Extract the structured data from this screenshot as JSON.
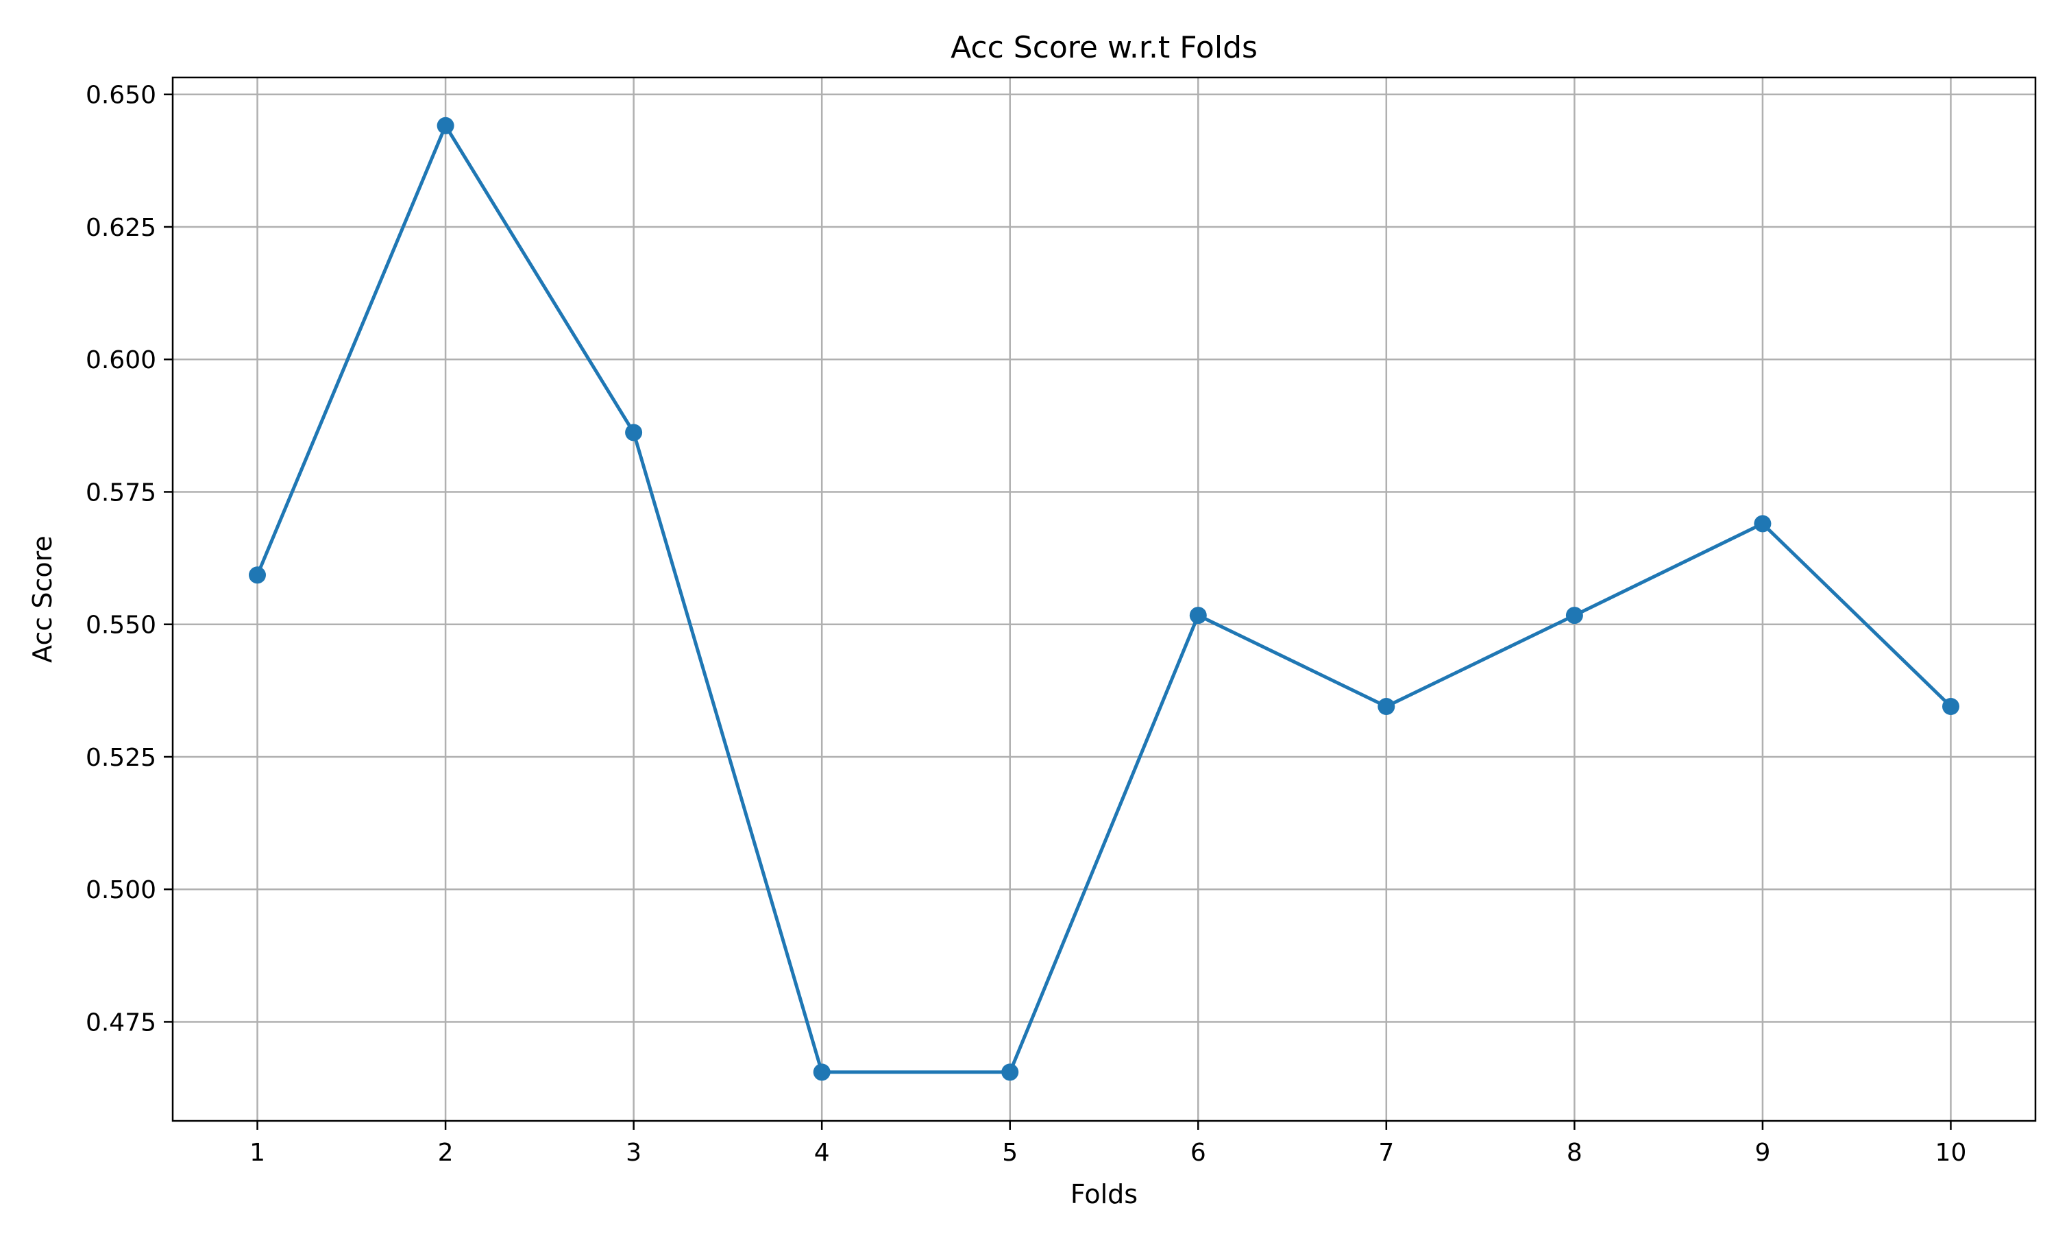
{
  "chart_data": {
    "type": "line",
    "title": "Acc Score w.r.t Folds",
    "xlabel": "Folds",
    "ylabel": "Acc Score",
    "x": [
      1,
      2,
      3,
      4,
      5,
      6,
      7,
      8,
      9,
      10
    ],
    "series": [
      {
        "values": [
          0.5593,
          0.6441,
          0.5862,
          0.4655,
          0.4655,
          0.5517,
          0.5345,
          0.5517,
          0.569,
          0.5345
        ],
        "color": "#1f77b4",
        "marker": "circle"
      }
    ],
    "xticks": [
      "1",
      "2",
      "3",
      "4",
      "5",
      "6",
      "7",
      "8",
      "9",
      "10"
    ],
    "xlim": [
      0.55,
      10.45
    ],
    "yticks": [
      0.475,
      0.5,
      0.525,
      0.55,
      0.575,
      0.6,
      0.625,
      0.65
    ],
    "ytick_labels": [
      "0.475",
      "0.500",
      "0.525",
      "0.550",
      "0.575",
      "0.600",
      "0.625",
      "0.650"
    ],
    "ylim": [
      0.4563,
      0.6532
    ],
    "grid": true
  }
}
